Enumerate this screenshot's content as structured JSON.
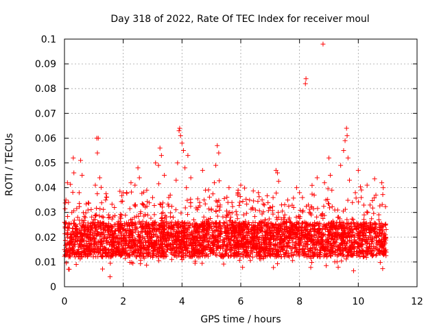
{
  "chart_data": {
    "type": "scatter",
    "title": "Day 318 of 2022, Rate Of TEC Index for receiver moul",
    "xlabel": "GPS time / hours",
    "ylabel": "ROTI / TECUs",
    "xlim": [
      0,
      12
    ],
    "ylim": [
      0,
      0.1
    ],
    "x_ticks": [
      0,
      2,
      4,
      6,
      8,
      10,
      12
    ],
    "y_ticks": [
      0,
      0.01,
      0.02,
      0.03,
      0.04,
      0.05,
      0.06,
      0.07,
      0.08,
      0.09,
      0.1
    ],
    "x_tick_labels": [
      "0",
      "2",
      "4",
      "6",
      "8",
      "10",
      "12"
    ],
    "y_tick_labels": [
      "0",
      "0.01",
      "0.02",
      "0.03",
      "0.04",
      "0.05",
      "0.06",
      "0.07",
      "0.08",
      "0.09",
      "0.1"
    ],
    "grid": true,
    "marker": "plus",
    "series": [
      {
        "name": "ROTI",
        "color": "#ff0000",
        "time_range_hours": [
          0,
          10.95
        ],
        "points": [
          [
            0.0,
            0.015
          ],
          [
            0.05,
            0.035
          ],
          [
            0.1,
            0.042
          ],
          [
            0.15,
            0.012
          ],
          [
            0.2,
            0.018
          ],
          [
            0.25,
            0.03
          ],
          [
            0.3,
            0.052
          ],
          [
            0.32,
            0.046
          ],
          [
            0.35,
            0.021
          ],
          [
            0.4,
            0.009
          ],
          [
            0.45,
            0.028
          ],
          [
            0.5,
            0.038
          ],
          [
            0.55,
            0.051
          ],
          [
            0.6,
            0.045
          ],
          [
            0.65,
            0.014
          ],
          [
            0.7,
            0.024
          ],
          [
            0.8,
            0.031
          ],
          [
            0.9,
            0.019
          ],
          [
            1.0,
            0.027
          ],
          [
            1.05,
            0.041
          ],
          [
            1.1,
            0.06
          ],
          [
            1.12,
            0.054
          ],
          [
            1.15,
            0.06
          ],
          [
            1.2,
            0.044
          ],
          [
            1.25,
            0.022
          ],
          [
            1.3,
            0.012
          ],
          [
            1.4,
            0.035
          ],
          [
            1.5,
            0.029
          ],
          [
            1.55,
            0.004
          ],
          [
            1.6,
            0.018
          ],
          [
            1.7,
            0.032
          ],
          [
            1.8,
            0.015
          ],
          [
            1.9,
            0.024
          ],
          [
            2.0,
            0.038
          ],
          [
            2.1,
            0.02
          ],
          [
            2.2,
            0.013
          ],
          [
            2.3,
            0.026
          ],
          [
            2.4,
            0.041
          ],
          [
            2.5,
            0.048
          ],
          [
            2.55,
            0.044
          ],
          [
            2.6,
            0.019
          ],
          [
            2.7,
            0.033
          ],
          [
            2.8,
            0.039
          ],
          [
            2.9,
            0.014
          ],
          [
            3.0,
            0.036
          ],
          [
            3.1,
            0.05
          ],
          [
            3.2,
            0.049
          ],
          [
            3.25,
            0.056
          ],
          [
            3.3,
            0.053
          ],
          [
            3.35,
            0.03
          ],
          [
            3.4,
            0.045
          ],
          [
            3.5,
            0.022
          ],
          [
            3.6,
            0.037
          ],
          [
            3.7,
            0.028
          ],
          [
            3.8,
            0.043
          ],
          [
            3.85,
            0.05
          ],
          [
            3.9,
            0.063
          ],
          [
            3.92,
            0.064
          ],
          [
            3.95,
            0.061
          ],
          [
            4.0,
            0.058
          ],
          [
            4.05,
            0.055
          ],
          [
            4.1,
            0.048
          ],
          [
            4.15,
            0.04
          ],
          [
            4.2,
            0.053
          ],
          [
            4.3,
            0.044
          ],
          [
            4.4,
            0.027
          ],
          [
            4.5,
            0.02
          ],
          [
            4.6,
            0.034
          ],
          [
            4.7,
            0.047
          ],
          [
            4.8,
            0.039
          ],
          [
            4.9,
            0.024
          ],
          [
            5.0,
            0.031
          ],
          [
            5.1,
            0.042
          ],
          [
            5.15,
            0.049
          ],
          [
            5.2,
            0.057
          ],
          [
            5.25,
            0.054
          ],
          [
            5.3,
            0.033
          ],
          [
            5.4,
            0.019
          ],
          [
            5.5,
            0.028
          ],
          [
            5.6,
            0.04
          ],
          [
            5.7,
            0.034
          ],
          [
            5.8,
            0.026
          ],
          [
            5.9,
            0.037
          ],
          [
            6.0,
            0.041
          ],
          [
            6.1,
            0.029
          ],
          [
            6.2,
            0.022
          ],
          [
            6.3,
            0.035
          ],
          [
            6.4,
            0.017
          ],
          [
            6.5,
            0.031
          ],
          [
            6.6,
            0.038
          ],
          [
            6.7,
            0.026
          ],
          [
            6.8,
            0.033
          ],
          [
            6.9,
            0.021
          ],
          [
            7.0,
            0.032
          ],
          [
            7.1,
            0.036
          ],
          [
            7.2,
            0.047
          ],
          [
            7.25,
            0.046
          ],
          [
            7.3,
            0.025
          ],
          [
            7.4,
            0.018
          ],
          [
            7.5,
            0.029
          ],
          [
            7.6,
            0.035
          ],
          [
            7.7,
            0.024
          ],
          [
            7.8,
            0.032
          ],
          [
            7.9,
            0.04
          ],
          [
            8.0,
            0.038
          ],
          [
            8.1,
            0.036
          ],
          [
            8.2,
            0.082
          ],
          [
            8.22,
            0.084
          ],
          [
            8.3,
            0.033
          ],
          [
            8.4,
            0.029
          ],
          [
            8.5,
            0.037
          ],
          [
            8.6,
            0.044
          ],
          [
            8.7,
            0.022
          ],
          [
            8.8,
            0.098
          ],
          [
            8.85,
            0.042
          ],
          [
            8.9,
            0.035
          ],
          [
            9.0,
            0.052
          ],
          [
            9.05,
            0.045
          ],
          [
            9.1,
            0.039
          ],
          [
            9.2,
            0.031
          ],
          [
            9.3,
            0.028
          ],
          [
            9.4,
            0.049
          ],
          [
            9.5,
            0.055
          ],
          [
            9.55,
            0.059
          ],
          [
            9.6,
            0.064
          ],
          [
            9.62,
            0.061
          ],
          [
            9.65,
            0.052
          ],
          [
            9.7,
            0.043
          ],
          [
            9.8,
            0.034
          ],
          [
            9.9,
            0.038
          ],
          [
            10.0,
            0.047
          ],
          [
            10.1,
            0.036
          ],
          [
            10.2,
            0.029
          ],
          [
            10.3,
            0.041
          ],
          [
            10.4,
            0.033
          ],
          [
            10.5,
            0.025
          ],
          [
            10.6,
            0.037
          ],
          [
            10.7,
            0.027
          ],
          [
            10.8,
            0.042
          ],
          [
            10.85,
            0.04
          ],
          [
            10.9,
            0.018
          ],
          [
            10.95,
            0.014
          ]
        ]
      }
    ]
  }
}
